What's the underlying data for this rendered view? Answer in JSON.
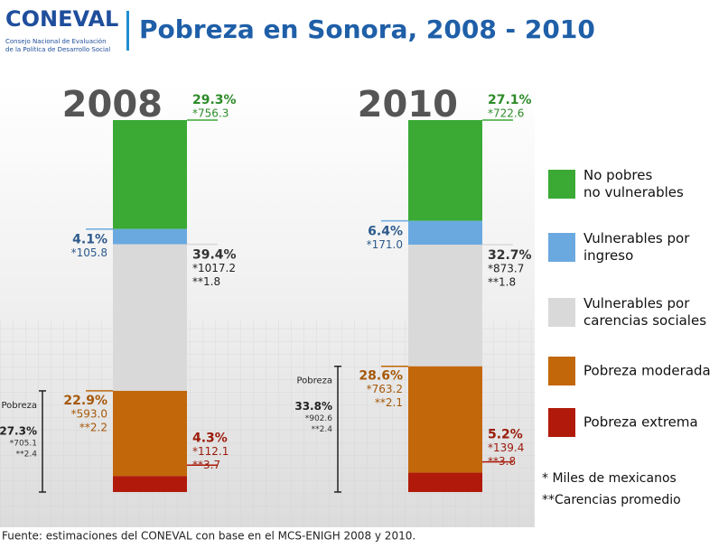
{
  "logo": {
    "name": "CONEVAL",
    "subtitle": [
      "Consejo Nacional de Evaluación",
      "de la Política de Desarrollo Social"
    ]
  },
  "chart_data": {
    "type": "bar",
    "stacked": true,
    "title": "Pobreza en Sonora, 2008 - 2010",
    "categories": [
      "2008",
      "2010"
    ],
    "ylim": [
      0,
      100
    ],
    "series": [
      {
        "name": "No pobres no vulnerables",
        "color": "#3aaa35",
        "values": [
          29.3,
          27.1
        ],
        "value_labels": [
          "29.3%",
          "27.1%"
        ],
        "people": [
          756.3,
          722.6
        ],
        "people_labels": [
          "*756.3",
          "*722.6"
        ],
        "carencias": [
          null,
          null
        ],
        "carencias_labels": [
          null,
          null
        ]
      },
      {
        "name": "Vulnerables por ingreso",
        "color": "#6aa9e0",
        "values": [
          4.1,
          6.4
        ],
        "value_labels": [
          "4.1%",
          "6.4%"
        ],
        "people": [
          105.8,
          171.0
        ],
        "people_labels": [
          "*105.8",
          "*171.0"
        ],
        "carencias": [
          null,
          null
        ],
        "carencias_labels": [
          null,
          null
        ]
      },
      {
        "name": "Vulnerables por carencias sociales",
        "color": "#d9d9d9",
        "values": [
          39.4,
          32.7
        ],
        "value_labels": [
          "39.4%",
          "32.7%"
        ],
        "people": [
          1017.2,
          873.7
        ],
        "people_labels": [
          "*1017.2",
          "*873.7"
        ],
        "carencias": [
          1.8,
          1.8
        ],
        "carencias_labels": [
          "**1.8",
          "**1.8"
        ]
      },
      {
        "name": "Pobreza moderada",
        "color": "#c2670a",
        "values": [
          22.9,
          28.6
        ],
        "value_labels": [
          "22.9%",
          "28.6%"
        ],
        "people": [
          593.0,
          763.2
        ],
        "people_labels": [
          "*593.0",
          "*763.2"
        ],
        "carencias": [
          2.2,
          2.1
        ],
        "carencias_labels": [
          "**2.2",
          "**2.1"
        ]
      },
      {
        "name": "Pobreza extrema",
        "color": "#b11a0a",
        "values": [
          4.3,
          5.2
        ],
        "value_labels": [
          "4.3%",
          "5.2%"
        ],
        "people": [
          112.1,
          139.4
        ],
        "people_labels": [
          "*112.1",
          "*139.4"
        ],
        "carencias": [
          3.7,
          3.8
        ],
        "carencias_labels": [
          "**3.7",
          "**3.8"
        ]
      }
    ],
    "poverty": {
      "label": "Pobreza",
      "values": [
        27.3,
        33.8
      ],
      "value_labels": [
        "27.3%",
        "33.8%"
      ],
      "people": [
        705.1,
        902.6
      ],
      "people_labels": [
        "*705.1",
        "*902.6"
      ],
      "carencias": [
        2.4,
        2.4
      ],
      "carencias_labels": [
        "**2.4",
        "**2.4"
      ]
    },
    "notes": [
      "* Miles de mexicanos",
      "**Carencias promedio"
    ],
    "source": "Fuente: estimaciones del CONEVAL con base en el MCS-ENIGH 2008 y 2010."
  }
}
